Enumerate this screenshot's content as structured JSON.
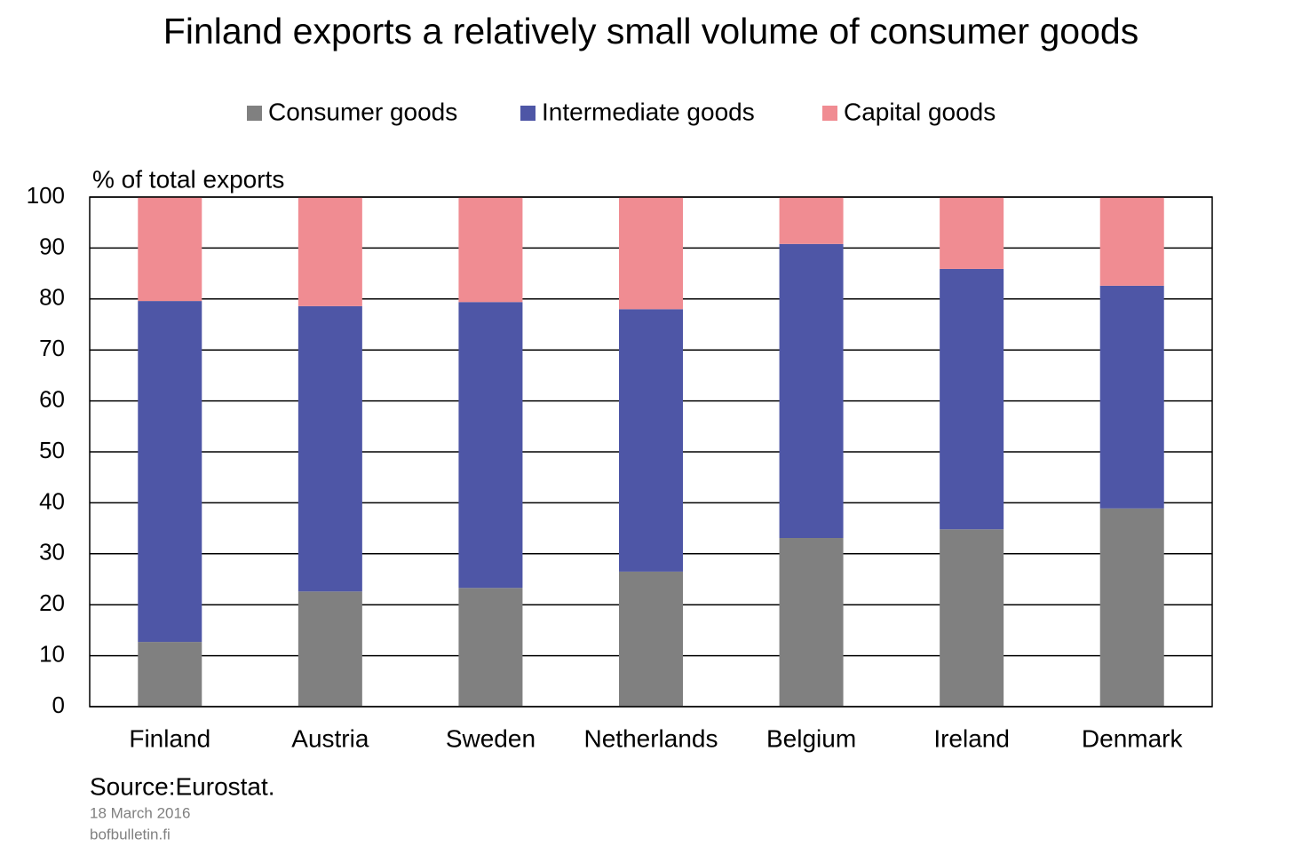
{
  "chart_data": {
    "type": "stacked_bar",
    "title": "Finland exports a relatively small volume of consumer goods",
    "y_label": "% of total exports",
    "source": "Source:Eurostat.",
    "date": "18 March 2016",
    "site": "bofbulletin.fi",
    "categories": [
      "Finland",
      "Austria",
      "Sweden",
      "Netherlands",
      "Belgium",
      "Ireland",
      "Denmark"
    ],
    "series": [
      {
        "name": "Consumer goods",
        "color": "#808080",
        "values": [
          12.7,
          22.6,
          23.3,
          26.5,
          33.1,
          34.8,
          38.9
        ]
      },
      {
        "name": "Intermediate goods",
        "color": "#4e56a6",
        "values": [
          66.9,
          56.0,
          56.1,
          51.5,
          57.7,
          51.1,
          43.7
        ]
      },
      {
        "name": "Capital goods",
        "color": "#f08c92",
        "values": [
          20.4,
          21.4,
          20.6,
          22.0,
          9.2,
          14.1,
          17.4
        ]
      }
    ],
    "ylim": [
      0,
      100
    ],
    "yticks": [
      0,
      10,
      20,
      30,
      40,
      50,
      60,
      70,
      80,
      90,
      100
    ],
    "grid": true,
    "legend": "top"
  }
}
